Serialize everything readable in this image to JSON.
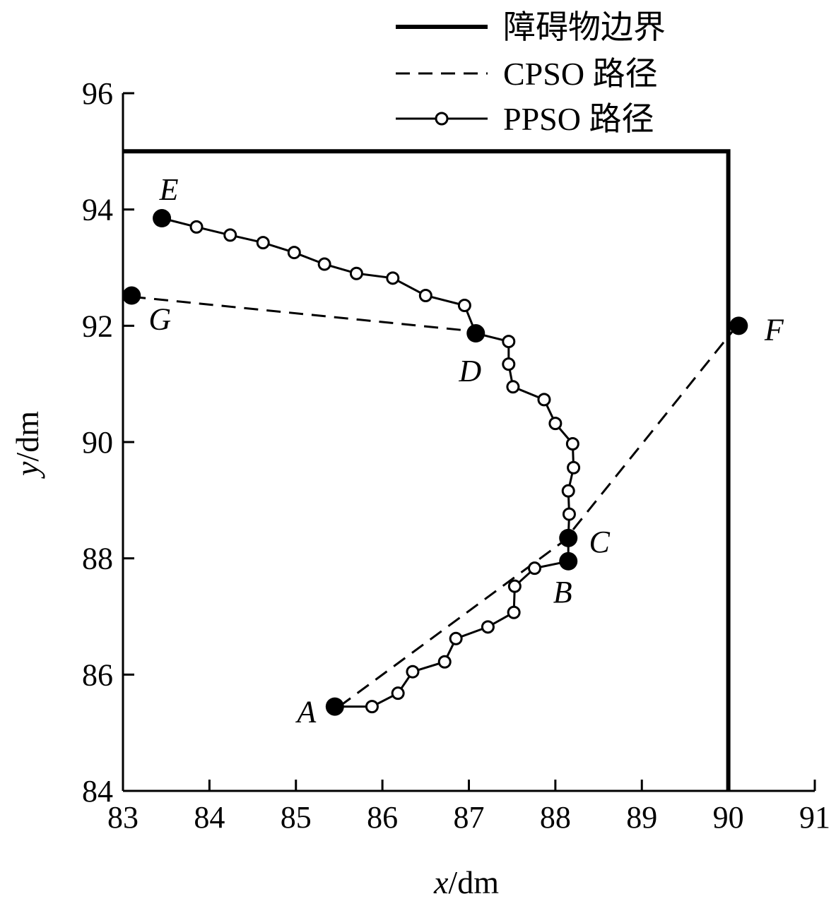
{
  "chart_data": {
    "type": "line",
    "xlabel_var": "x",
    "xlabel_unit": "/dm",
    "ylabel_var": "y",
    "ylabel_unit": "/dm",
    "xlim": [
      83,
      91
    ],
    "ylim": [
      84,
      96
    ],
    "xticks": [
      83,
      84,
      85,
      86,
      87,
      88,
      89,
      90,
      91
    ],
    "yticks": [
      84,
      86,
      88,
      90,
      92,
      94,
      96
    ],
    "grid": false,
    "legend_position": "top-right",
    "legend": [
      {
        "label": "障碍物边界",
        "style": "thick-solid"
      },
      {
        "label": "CPSO 路径",
        "style": "dashed"
      },
      {
        "label": "PPSO 路径",
        "style": "solid-open-circles"
      }
    ],
    "obstacle_boundary": [
      [
        83,
        95
      ],
      [
        90,
        95
      ],
      [
        90,
        84
      ]
    ],
    "cpso_path": [
      [
        85.5,
        85.45
      ],
      [
        88.1,
        88.3
      ],
      [
        90.1,
        92.0
      ]
    ],
    "cpso_path_2": [
      [
        83.1,
        92.5
      ],
      [
        87.1,
        91.9
      ]
    ],
    "ppso_path": [
      [
        85.45,
        85.45
      ],
      [
        85.88,
        85.45
      ],
      [
        86.18,
        85.68
      ],
      [
        86.35,
        86.05
      ],
      [
        86.72,
        86.22
      ],
      [
        86.85,
        86.62
      ],
      [
        87.22,
        86.82
      ],
      [
        87.52,
        87.07
      ],
      [
        87.53,
        87.52
      ],
      [
        87.76,
        87.83
      ],
      [
        88.15,
        87.95
      ],
      [
        88.15,
        88.35
      ],
      [
        88.16,
        88.76
      ],
      [
        88.15,
        89.16
      ],
      [
        88.21,
        89.56
      ],
      [
        88.2,
        89.97
      ],
      [
        88.0,
        90.32
      ],
      [
        87.87,
        90.73
      ],
      [
        87.51,
        90.95
      ],
      [
        87.46,
        91.34
      ],
      [
        87.46,
        91.73
      ],
      [
        87.08,
        91.87
      ],
      [
        86.95,
        92.35
      ],
      [
        86.5,
        92.52
      ],
      [
        86.12,
        92.82
      ],
      [
        85.7,
        92.9
      ],
      [
        85.33,
        93.06
      ],
      [
        84.98,
        93.26
      ],
      [
        84.62,
        93.43
      ],
      [
        84.24,
        93.56
      ],
      [
        83.85,
        93.7
      ],
      [
        83.45,
        93.85
      ]
    ],
    "key_points": [
      {
        "name": "A",
        "x": 85.45,
        "y": 85.45
      },
      {
        "name": "B",
        "x": 88.15,
        "y": 87.95
      },
      {
        "name": "C",
        "x": 88.15,
        "y": 88.35
      },
      {
        "name": "D",
        "x": 87.08,
        "y": 91.87
      },
      {
        "name": "E",
        "x": 83.45,
        "y": 93.85
      },
      {
        "name": "F",
        "x": 90.12,
        "y": 92.0
      },
      {
        "name": "G",
        "x": 83.1,
        "y": 92.52
      }
    ]
  }
}
